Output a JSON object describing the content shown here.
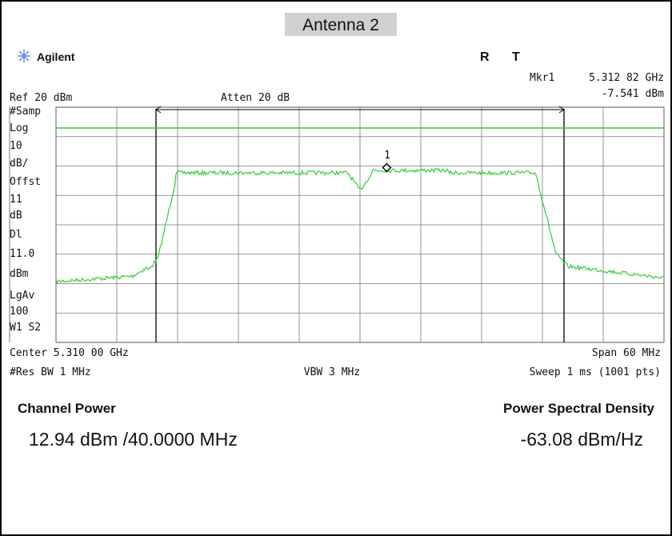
{
  "header": {
    "title": "Antenna 2",
    "brand": "Agilent",
    "status": [
      "R",
      "T"
    ]
  },
  "marker": {
    "label": "Mkr1",
    "frequency": "5.312 82 GHz",
    "level": "-7.541 dBm",
    "id": "1"
  },
  "top": {
    "ref": "Ref 20 dBm",
    "atten": "Atten 20 dB"
  },
  "side_labels": [
    "#Samp",
    "Log",
    "10",
    "dB/",
    "Offst",
    "11",
    "dB",
    "Dl",
    "11.0",
    "dBm",
    "LgAv",
    "100",
    "W1  S2"
  ],
  "bottom": {
    "center": "Center 5.310 00 GHz",
    "span": "Span 60 MHz",
    "rbw": "#Res BW 1 MHz",
    "vbw": "VBW 3 MHz",
    "sweep": "Sweep 1 ms (1001 pts)"
  },
  "results": {
    "channel_power_label": "Channel Power",
    "channel_power": "12.94 dBm /40.0000 MHz",
    "psd_label": "Power Spectral Density",
    "psd": "-63.08 dBm/Hz"
  }
}
